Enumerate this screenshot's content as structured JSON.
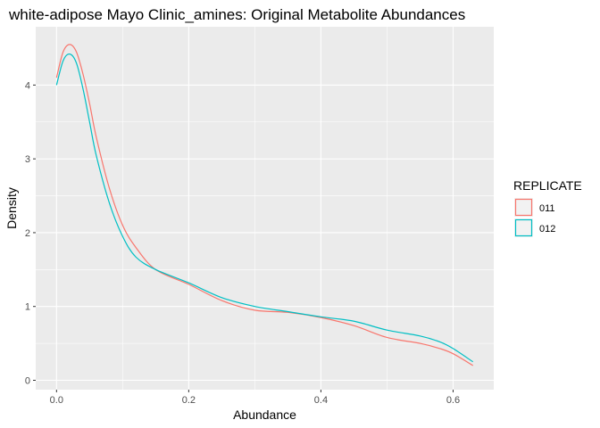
{
  "chart_data": {
    "type": "line",
    "title": "white-adipose Mayo Clinic_amines: Original Metabolite Abundances",
    "xlabel": "Abundance",
    "ylabel": "Density",
    "xlim": [
      -0.0315,
      0.6615
    ],
    "ylim": [
      -0.127,
      4.79
    ],
    "xticks": [
      0.0,
      0.2,
      0.4,
      0.6
    ],
    "xtick_labels": [
      "0.0",
      "0.2",
      "0.4",
      "0.6"
    ],
    "yticks": [
      0,
      1,
      2,
      3,
      4
    ],
    "ytick_labels": [
      "0",
      "1",
      "2",
      "3",
      "4"
    ],
    "grid": true,
    "legend": {
      "title": "REPLICATE",
      "placement": "right"
    },
    "series": [
      {
        "name": "011",
        "color": "#F8766D",
        "x": [
          0.0,
          0.01,
          0.02,
          0.03,
          0.04,
          0.05,
          0.06,
          0.08,
          0.1,
          0.12,
          0.15,
          0.2,
          0.25,
          0.3,
          0.35,
          0.4,
          0.45,
          0.5,
          0.55,
          0.58,
          0.6,
          0.63
        ],
        "y": [
          4.1,
          4.45,
          4.55,
          4.45,
          4.15,
          3.75,
          3.3,
          2.6,
          2.1,
          1.8,
          1.5,
          1.3,
          1.08,
          0.95,
          0.92,
          0.85,
          0.74,
          0.58,
          0.5,
          0.43,
          0.36,
          0.2
        ]
      },
      {
        "name": "012",
        "color": "#00BFC4",
        "x": [
          0.0,
          0.01,
          0.02,
          0.03,
          0.04,
          0.05,
          0.06,
          0.08,
          0.1,
          0.12,
          0.15,
          0.2,
          0.25,
          0.3,
          0.35,
          0.4,
          0.45,
          0.5,
          0.55,
          0.58,
          0.6,
          0.63
        ],
        "y": [
          4.0,
          4.33,
          4.42,
          4.3,
          3.95,
          3.5,
          3.05,
          2.4,
          1.95,
          1.67,
          1.5,
          1.32,
          1.12,
          1.0,
          0.93,
          0.86,
          0.8,
          0.68,
          0.6,
          0.52,
          0.43,
          0.25
        ]
      }
    ]
  }
}
